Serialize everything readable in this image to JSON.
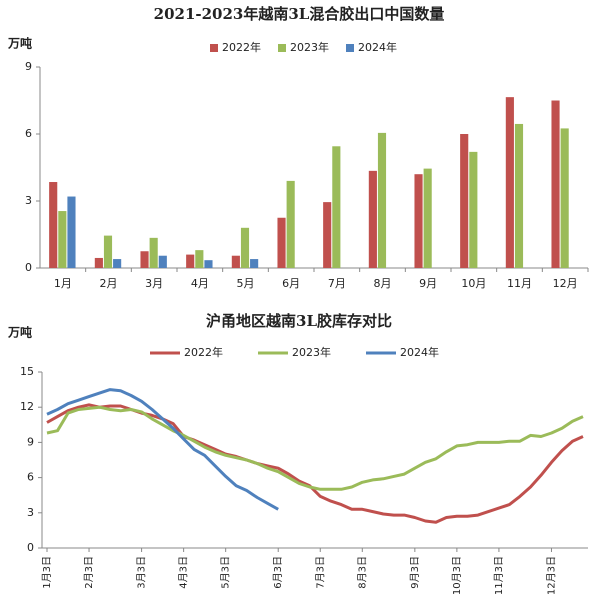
{
  "chart_data": [
    {
      "type": "bar",
      "title": "2021-2023年越南3L混合胶出口中国数量",
      "y_label": "万吨",
      "categories": [
        "1月",
        "2月",
        "3月",
        "4月",
        "5月",
        "6月",
        "7月",
        "8月",
        "9月",
        "10月",
        "11月",
        "12月"
      ],
      "series": [
        {
          "name": "2022年",
          "color": "#c0504d",
          "values": [
            3.85,
            0.45,
            0.75,
            0.6,
            0.55,
            2.25,
            2.95,
            4.35,
            4.2,
            6.0,
            7.65,
            7.5
          ]
        },
        {
          "name": "2023年",
          "color": "#9bbb59",
          "values": [
            2.55,
            1.45,
            1.35,
            0.8,
            1.8,
            3.9,
            5.45,
            6.05,
            4.45,
            5.2,
            6.45,
            6.25
          ]
        },
        {
          "name": "2024年",
          "color": "#4f81bd",
          "values": [
            3.2,
            0.4,
            0.55,
            0.35,
            0.4,
            null,
            null,
            null,
            null,
            null,
            null,
            null
          ]
        }
      ],
      "ylim": [
        0,
        9
      ],
      "yticks": [
        0,
        3,
        6,
        9
      ],
      "grid": false
    },
    {
      "type": "line",
      "title": "沪甬地区越南3L胶库存对比",
      "y_label": "万吨",
      "categories": [
        "1月3日",
        null,
        null,
        null,
        "2月3日",
        null,
        null,
        null,
        null,
        "3月3日",
        null,
        null,
        null,
        "4月3日",
        null,
        null,
        null,
        "5月3日",
        null,
        null,
        null,
        null,
        "6月3日",
        null,
        null,
        null,
        "7月3日",
        null,
        null,
        null,
        "8月3日",
        null,
        null,
        null,
        null,
        "9月3日",
        null,
        null,
        null,
        "10月3日",
        null,
        null,
        null,
        "11月3日",
        null,
        null,
        null,
        null,
        "12月3日",
        null,
        null,
        null
      ],
      "series": [
        {
          "name": "2022年",
          "color": "#c0504d",
          "values": [
            10.7,
            11.2,
            11.7,
            12.0,
            12.2,
            12.0,
            12.1,
            12.1,
            11.8,
            11.5,
            11.3,
            11.0,
            10.6,
            9.5,
            9.2,
            8.8,
            8.4,
            8.0,
            7.8,
            7.5,
            7.2,
            7.0,
            6.8,
            6.3,
            5.7,
            5.3,
            4.4,
            4.0,
            3.7,
            3.3,
            3.3,
            3.1,
            2.9,
            2.8,
            2.8,
            2.6,
            2.3,
            2.2,
            2.6,
            2.7,
            2.7,
            2.8,
            3.1,
            3.4,
            3.7,
            4.4,
            5.2,
            6.2,
            7.3,
            8.3,
            9.1,
            9.5
          ]
        },
        {
          "name": "2023年",
          "color": "#9bbb59",
          "values": [
            9.8,
            10.0,
            11.5,
            11.8,
            11.9,
            12.0,
            11.8,
            11.7,
            11.8,
            11.6,
            11.0,
            10.5,
            10.0,
            9.6,
            9.1,
            8.6,
            8.2,
            7.9,
            7.7,
            7.5,
            7.2,
            6.8,
            6.5,
            6.0,
            5.5,
            5.2,
            5.0,
            5.0,
            5.0,
            5.2,
            5.6,
            5.8,
            5.9,
            6.1,
            6.3,
            6.8,
            7.3,
            7.6,
            8.2,
            8.7,
            8.8,
            9.0,
            9.0,
            9.0,
            9.1,
            9.1,
            9.6,
            9.5,
            9.8,
            10.2,
            10.8,
            11.2
          ]
        },
        {
          "name": "2024年",
          "color": "#4f81bd",
          "values": [
            11.4,
            11.8,
            12.3,
            12.6,
            12.9,
            13.2,
            13.5,
            13.4,
            13.0,
            12.5,
            11.8,
            11.0,
            10.2,
            9.3,
            8.4,
            7.9,
            7.0,
            6.1,
            5.3,
            4.9,
            4.3,
            3.8,
            3.3,
            null,
            null,
            null,
            null,
            null,
            null,
            null,
            null,
            null,
            null,
            null,
            null,
            null,
            null,
            null,
            null,
            null,
            null,
            null,
            null,
            null,
            null,
            null,
            null,
            null,
            null,
            null,
            null,
            null
          ]
        }
      ],
      "ylim": [
        0,
        15
      ],
      "yticks": [
        0,
        3,
        6,
        9,
        12,
        15
      ],
      "grid": false
    }
  ]
}
